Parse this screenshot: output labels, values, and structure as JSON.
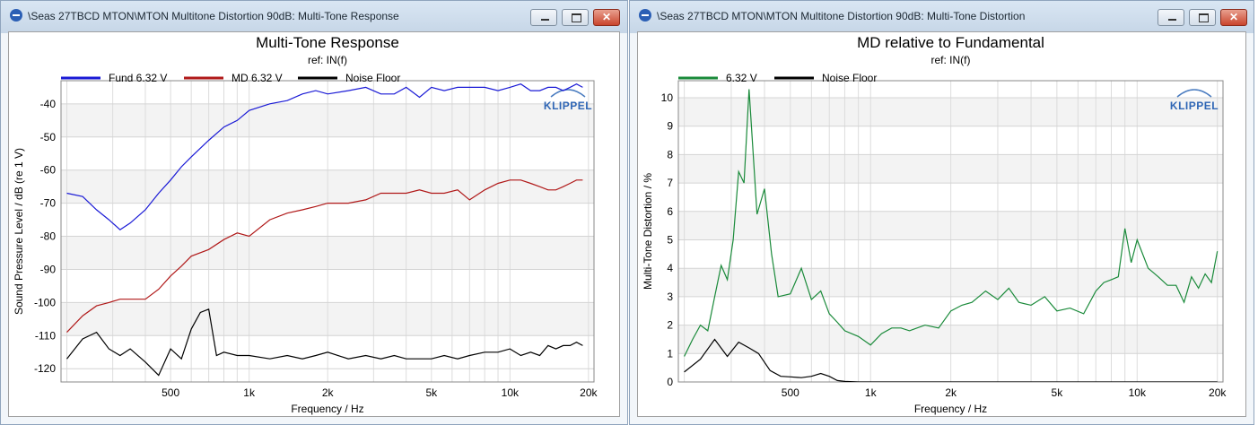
{
  "windows": [
    {
      "title": "\\Seas 27TBCD MTON\\MTON Multitone Distortion 90dB: Multi-Tone Response",
      "logo": "KLIPPEL"
    },
    {
      "title": "\\Seas 27TBCD MTON\\MTON Multitone Distortion 90dB: Multi-Tone Distortion",
      "logo": "KLIPPEL"
    }
  ],
  "chart_data": [
    {
      "type": "line",
      "title": "Multi-Tone Response",
      "subtitle": "ref: IN(f)",
      "xlabel": "Frequency / Hz",
      "ylabel": "Sound Pressure Level / dB (re 1 V)",
      "xscale": "log",
      "xlim": [
        190,
        21000
      ],
      "ylim": [
        -124,
        -33
      ],
      "x_ticks": [
        500,
        1000,
        2000,
        5000,
        10000,
        20000
      ],
      "x_tick_labels": [
        "500",
        "1k",
        "2k",
        "5k",
        "10k",
        "20k"
      ],
      "y_ticks": [
        -40,
        -50,
        -60,
        -70,
        -80,
        -90,
        -100,
        -110,
        -120
      ],
      "y_tick_labels": [
        "-40",
        "-50",
        "-60",
        "-70",
        "-80",
        "-90",
        "-100",
        "-110",
        "-120"
      ],
      "grid": true,
      "legend_position": "top",
      "series": [
        {
          "name": "Fund 6.32 V",
          "color": "#1a1ad6",
          "x": [
            200,
            230,
            260,
            290,
            320,
            350,
            400,
            450,
            500,
            550,
            600,
            700,
            800,
            900,
            1000,
            1200,
            1400,
            1600,
            1800,
            2000,
            2400,
            2800,
            3200,
            3600,
            4000,
            4500,
            5000,
            5600,
            6300,
            7000,
            8000,
            9000,
            10000,
            11000,
            12000,
            13000,
            14000,
            15000,
            16000,
            17000,
            18000,
            19000
          ],
          "y": [
            -67,
            -68,
            -72,
            -75,
            -78,
            -76,
            -72,
            -67,
            -63,
            -59,
            -56,
            -51,
            -47,
            -45,
            -42,
            -40,
            -39,
            -37,
            -36,
            -37,
            -36,
            -35,
            -37,
            -37,
            -35,
            -38,
            -35,
            -36,
            -35,
            -35,
            -35,
            -36,
            -35,
            -34,
            -36,
            -36,
            -35,
            -35,
            -36,
            -35,
            -34,
            -35
          ]
        },
        {
          "name": "MD 6.32 V",
          "color": "#b01818",
          "x": [
            200,
            230,
            260,
            290,
            320,
            350,
            400,
            450,
            500,
            550,
            600,
            700,
            800,
            900,
            1000,
            1200,
            1400,
            1600,
            1800,
            2000,
            2400,
            2800,
            3200,
            3600,
            4000,
            4500,
            5000,
            5600,
            6300,
            7000,
            8000,
            9000,
            10000,
            11000,
            12000,
            13000,
            14000,
            15000,
            16000,
            17000,
            18000,
            19000
          ],
          "y": [
            -109,
            -104,
            -101,
            -100,
            -99,
            -99,
            -99,
            -96,
            -92,
            -89,
            -86,
            -84,
            -81,
            -79,
            -80,
            -75,
            -73,
            -72,
            -71,
            -70,
            -70,
            -69,
            -67,
            -67,
            -67,
            -66,
            -67,
            -67,
            -66,
            -69,
            -66,
            -64,
            -63,
            -63,
            -64,
            -65,
            -66,
            -66,
            -65,
            -64,
            -63,
            -63
          ]
        },
        {
          "name": "Noise Floor",
          "color": "#000000",
          "x": [
            200,
            230,
            260,
            290,
            320,
            350,
            400,
            450,
            500,
            550,
            600,
            650,
            700,
            750,
            800,
            900,
            1000,
            1200,
            1400,
            1600,
            1800,
            2000,
            2400,
            2800,
            3200,
            3600,
            4000,
            4500,
            5000,
            5600,
            6300,
            7000,
            8000,
            9000,
            10000,
            11000,
            12000,
            13000,
            14000,
            15000,
            16000,
            17000,
            18000,
            19000
          ],
          "y": [
            -117,
            -111,
            -109,
            -114,
            -116,
            -114,
            -118,
            -122,
            -114,
            -117,
            -108,
            -103,
            -102,
            -116,
            -115,
            -116,
            -116,
            -117,
            -116,
            -117,
            -116,
            -115,
            -117,
            -116,
            -117,
            -116,
            -117,
            -117,
            -117,
            -116,
            -117,
            -116,
            -115,
            -115,
            -114,
            -116,
            -115,
            -116,
            -113,
            -114,
            -113,
            -113,
            -112,
            -113
          ]
        }
      ]
    },
    {
      "type": "line",
      "title": "MD relative to Fundamental",
      "subtitle": "ref: IN(f)",
      "xlabel": "Frequency / Hz",
      "ylabel": "Multi-Tone Distortion / %",
      "xscale": "log",
      "xlim": [
        190,
        21000
      ],
      "ylim": [
        0,
        10.6
      ],
      "x_ticks": [
        500,
        1000,
        2000,
        5000,
        10000,
        20000
      ],
      "x_tick_labels": [
        "500",
        "1k",
        "2k",
        "5k",
        "10k",
        "20k"
      ],
      "y_ticks": [
        0,
        1,
        2,
        3,
        4,
        5,
        6,
        7,
        8,
        9,
        10
      ],
      "y_tick_labels": [
        "0",
        "1",
        "2",
        "3",
        "4",
        "5",
        "6",
        "7",
        "8",
        "9",
        "10"
      ],
      "grid": true,
      "legend_position": "top",
      "series": [
        {
          "name": "6.32 V",
          "color": "#1a8a3a",
          "x": [
            200,
            215,
            230,
            245,
            260,
            275,
            290,
            305,
            320,
            335,
            350,
            375,
            400,
            425,
            450,
            500,
            550,
            600,
            650,
            700,
            750,
            800,
            900,
            1000,
            1100,
            1200,
            1300,
            1400,
            1600,
            1800,
            2000,
            2200,
            2400,
            2700,
            3000,
            3300,
            3600,
            4000,
            4500,
            5000,
            5600,
            6300,
            7000,
            7500,
            8000,
            8500,
            9000,
            9500,
            10000,
            11000,
            12000,
            13000,
            14000,
            15000,
            16000,
            17000,
            18000,
            19000,
            20000
          ],
          "y": [
            0.9,
            1.5,
            2.0,
            1.8,
            3.0,
            4.1,
            3.6,
            5.0,
            7.4,
            7.0,
            10.3,
            5.9,
            6.8,
            4.5,
            3.0,
            3.1,
            4.0,
            2.9,
            3.2,
            2.4,
            2.1,
            1.8,
            1.6,
            1.3,
            1.7,
            1.9,
            1.9,
            1.8,
            2.0,
            1.9,
            2.5,
            2.7,
            2.8,
            3.2,
            2.9,
            3.3,
            2.8,
            2.7,
            3.0,
            2.5,
            2.6,
            2.4,
            3.2,
            3.5,
            3.6,
            3.7,
            5.4,
            4.2,
            5.0,
            4.0,
            3.7,
            3.4,
            3.4,
            2.8,
            3.7,
            3.3,
            3.8,
            3.5,
            4.6
          ]
        },
        {
          "name": "Noise Floor",
          "color": "#000000",
          "x": [
            200,
            230,
            260,
            290,
            320,
            350,
            380,
            420,
            460,
            500,
            550,
            600,
            650,
            700,
            750,
            800,
            900,
            1000,
            1500,
            2000,
            5000,
            10000,
            20000
          ],
          "y": [
            0.35,
            0.8,
            1.5,
            0.9,
            1.4,
            1.2,
            1.0,
            0.4,
            0.2,
            0.18,
            0.15,
            0.2,
            0.3,
            0.2,
            0.05,
            0.02,
            0.0,
            0.0,
            0.0,
            0.0,
            0.0,
            0.0,
            0.0
          ]
        }
      ]
    }
  ]
}
